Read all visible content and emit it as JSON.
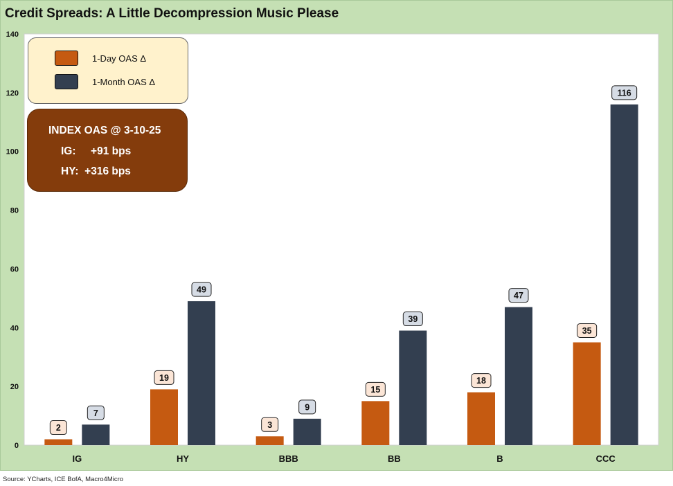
{
  "title": "Credit Spreads: A Little Decompression Music Please",
  "source": "Source: YCharts, ICE BofA, Macro4Micro",
  "legend": {
    "items": [
      {
        "label": "1-Day OAS Δ",
        "color": "#c55a11"
      },
      {
        "label": "1-Month OAS Δ",
        "color": "#333f50"
      }
    ]
  },
  "info_box": {
    "title": "INDEX OAS @ 3-10-25",
    "ig_line": "IG:     +91 bps",
    "hy_line": "HY:  +316 bps"
  },
  "colors": {
    "background": "#c5e0b4",
    "plot_area": "#ffffff",
    "series_1": "#c55a11",
    "series_2": "#333f50",
    "label_fill_1": "#fbe5d6",
    "label_fill_2": "#d6dce5"
  },
  "chart_data": {
    "type": "bar",
    "categories": [
      "IG",
      "HY",
      "BBB",
      "BB",
      "B",
      "CCC"
    ],
    "series": [
      {
        "name": "1-Day OAS Δ",
        "values": [
          2,
          19,
          3,
          15,
          18,
          35
        ]
      },
      {
        "name": "1-Month OAS Δ",
        "values": [
          7,
          49,
          9,
          39,
          47,
          116
        ]
      }
    ],
    "ylim": [
      0,
      140
    ],
    "yticks": [
      0,
      20,
      40,
      60,
      80,
      100,
      120,
      140
    ],
    "grid": false,
    "legend_position": "top-left"
  }
}
